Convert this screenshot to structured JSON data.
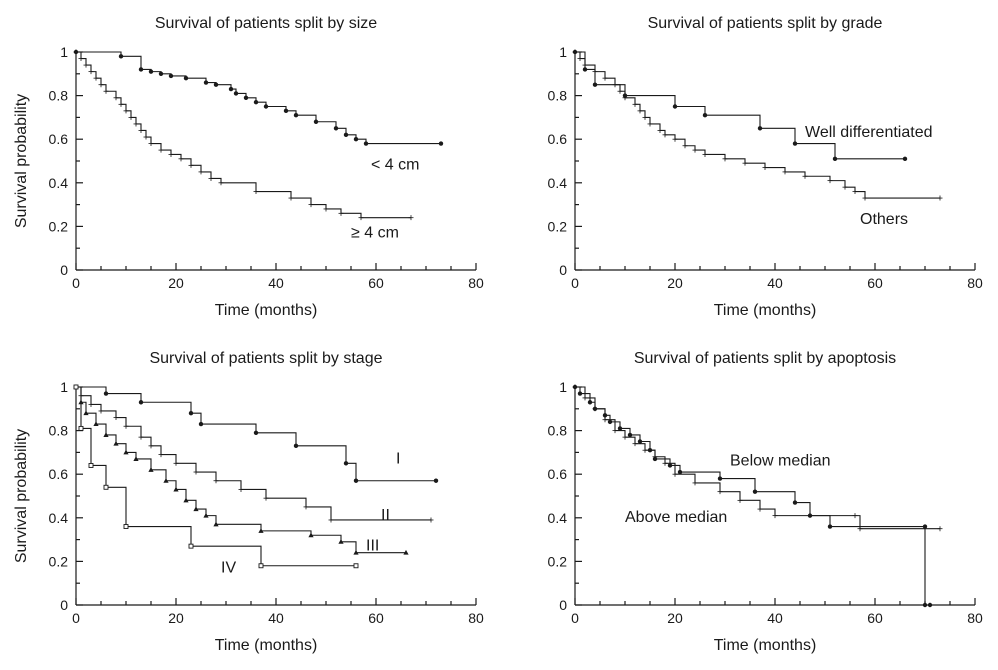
{
  "chart_data": [
    {
      "type": "line",
      "title": "Survival of patients split by size",
      "xlabel": "Time (months)",
      "ylabel": "Survival probability",
      "xlim": [
        0,
        80
      ],
      "ylim": [
        0,
        1
      ],
      "xticks": [
        "0",
        "20",
        "40",
        "60",
        "80"
      ],
      "yticks": [
        "0",
        "0.2",
        "0.4",
        "0.6",
        "0.8",
        "1"
      ],
      "series": [
        {
          "name": "< 4 cm",
          "marker": "dot",
          "points": [
            [
              0,
              1
            ],
            [
              9,
              0.98
            ],
            [
              13,
              0.92
            ],
            [
              15,
              0.91
            ],
            [
              17,
              0.9
            ],
            [
              19,
              0.89
            ],
            [
              22,
              0.88
            ],
            [
              26,
              0.86
            ],
            [
              28,
              0.85
            ],
            [
              31,
              0.83
            ],
            [
              32,
              0.81
            ],
            [
              34,
              0.79
            ],
            [
              36,
              0.77
            ],
            [
              38,
              0.75
            ],
            [
              42,
              0.73
            ],
            [
              44,
              0.71
            ],
            [
              48,
              0.68
            ],
            [
              52,
              0.65
            ],
            [
              54,
              0.62
            ],
            [
              56,
              0.6
            ],
            [
              58,
              0.58
            ],
            [
              73,
              0.58
            ]
          ],
          "label_at": [
            59,
            0.46
          ]
        },
        {
          "name": "≥ 4 cm",
          "marker": "plus",
          "points": [
            [
              0,
              1
            ],
            [
              1,
              0.97
            ],
            [
              2,
              0.94
            ],
            [
              3,
              0.91
            ],
            [
              4,
              0.88
            ],
            [
              5,
              0.85
            ],
            [
              6,
              0.82
            ],
            [
              8,
              0.79
            ],
            [
              9,
              0.76
            ],
            [
              10,
              0.73
            ],
            [
              11,
              0.7
            ],
            [
              12,
              0.67
            ],
            [
              13,
              0.64
            ],
            [
              14,
              0.61
            ],
            [
              15,
              0.58
            ],
            [
              17,
              0.55
            ],
            [
              19,
              0.53
            ],
            [
              21,
              0.51
            ],
            [
              23,
              0.48
            ],
            [
              25,
              0.45
            ],
            [
              27,
              0.42
            ],
            [
              29,
              0.4
            ],
            [
              36,
              0.36
            ],
            [
              43,
              0.33
            ],
            [
              47,
              0.3
            ],
            [
              50,
              0.28
            ],
            [
              53,
              0.26
            ],
            [
              57,
              0.24
            ],
            [
              67,
              0.24
            ]
          ],
          "label_at": [
            55,
            0.15
          ]
        }
      ]
    },
    {
      "type": "line",
      "title": "Survival of patients split by grade",
      "xlabel": "Time (months)",
      "ylabel": "",
      "xlim": [
        0,
        80
      ],
      "ylim": [
        0,
        1
      ],
      "xticks": [
        "0",
        "20",
        "40",
        "60",
        "80"
      ],
      "yticks": [
        "0",
        "0.2",
        "0.4",
        "0.6",
        "0.8",
        "1"
      ],
      "series": [
        {
          "name": "Well differentiated",
          "marker": "dot",
          "points": [
            [
              0,
              1
            ],
            [
              2,
              0.92
            ],
            [
              4,
              0.85
            ],
            [
              10,
              0.8
            ],
            [
              20,
              0.75
            ],
            [
              26,
              0.71
            ],
            [
              37,
              0.65
            ],
            [
              44,
              0.58
            ],
            [
              52,
              0.51
            ],
            [
              66,
              0.51
            ]
          ],
          "label_at": [
            46,
            0.61
          ]
        },
        {
          "name": "Others",
          "marker": "plus",
          "points": [
            [
              0,
              1
            ],
            [
              1,
              0.97
            ],
            [
              2,
              0.94
            ],
            [
              4,
              0.91
            ],
            [
              6,
              0.88
            ],
            [
              8,
              0.85
            ],
            [
              9,
              0.82
            ],
            [
              10,
              0.79
            ],
            [
              12,
              0.76
            ],
            [
              13,
              0.73
            ],
            [
              14,
              0.7
            ],
            [
              15,
              0.67
            ],
            [
              17,
              0.64
            ],
            [
              18,
              0.62
            ],
            [
              20,
              0.6
            ],
            [
              22,
              0.57
            ],
            [
              24,
              0.55
            ],
            [
              26,
              0.53
            ],
            [
              30,
              0.51
            ],
            [
              34,
              0.49
            ],
            [
              38,
              0.47
            ],
            [
              42,
              0.45
            ],
            [
              46,
              0.43
            ],
            [
              51,
              0.41
            ],
            [
              54,
              0.38
            ],
            [
              56,
              0.36
            ],
            [
              58,
              0.33
            ],
            [
              73,
              0.33
            ]
          ],
          "label_at": [
            57,
            0.21
          ]
        }
      ]
    },
    {
      "type": "line",
      "title": "Survival of patients split by stage",
      "xlabel": "Time (months)",
      "ylabel": "Survival probability",
      "xlim": [
        0,
        80
      ],
      "ylim": [
        0,
        1
      ],
      "xticks": [
        "0",
        "20",
        "40",
        "60",
        "80"
      ],
      "yticks": [
        "0",
        "0.2",
        "0.4",
        "0.6",
        "0.8",
        "1"
      ],
      "series": [
        {
          "name": "I",
          "marker": "dot",
          "points": [
            [
              0,
              1
            ],
            [
              6,
              0.97
            ],
            [
              13,
              0.93
            ],
            [
              23,
              0.88
            ],
            [
              25,
              0.83
            ],
            [
              36,
              0.79
            ],
            [
              44,
              0.73
            ],
            [
              54,
              0.65
            ],
            [
              56,
              0.57
            ],
            [
              72,
              0.57
            ]
          ],
          "label_at": [
            64,
            0.65
          ]
        },
        {
          "name": "II",
          "marker": "plus",
          "points": [
            [
              0,
              1
            ],
            [
              1,
              0.96
            ],
            [
              3,
              0.92
            ],
            [
              5,
              0.89
            ],
            [
              8,
              0.86
            ],
            [
              10,
              0.82
            ],
            [
              13,
              0.77
            ],
            [
              15,
              0.73
            ],
            [
              17,
              0.69
            ],
            [
              20,
              0.65
            ],
            [
              24,
              0.61
            ],
            [
              28,
              0.57
            ],
            [
              33,
              0.53
            ],
            [
              38,
              0.49
            ],
            [
              46,
              0.45
            ],
            [
              51,
              0.39
            ],
            [
              71,
              0.39
            ]
          ],
          "label_at": [
            61,
            0.39
          ]
        },
        {
          "name": "III",
          "marker": "tri",
          "points": [
            [
              0,
              1
            ],
            [
              1,
              0.93
            ],
            [
              2,
              0.88
            ],
            [
              4,
              0.83
            ],
            [
              6,
              0.78
            ],
            [
              8,
              0.74
            ],
            [
              10,
              0.7
            ],
            [
              12,
              0.67
            ],
            [
              15,
              0.62
            ],
            [
              18,
              0.57
            ],
            [
              20,
              0.53
            ],
            [
              22,
              0.48
            ],
            [
              24,
              0.44
            ],
            [
              26,
              0.41
            ],
            [
              28,
              0.37
            ],
            [
              37,
              0.34
            ],
            [
              47,
              0.32
            ],
            [
              53,
              0.29
            ],
            [
              56,
              0.24
            ],
            [
              66,
              0.24
            ]
          ],
          "label_at": [
            58,
            0.25
          ]
        },
        {
          "name": "IV",
          "marker": "square",
          "points": [
            [
              0,
              1
            ],
            [
              1,
              0.81
            ],
            [
              3,
              0.64
            ],
            [
              6,
              0.54
            ],
            [
              10,
              0.36
            ],
            [
              23,
              0.27
            ],
            [
              37,
              0.18
            ],
            [
              56,
              0.18
            ]
          ],
          "label_at": [
            29,
            0.15
          ]
        }
      ]
    },
    {
      "type": "line",
      "title": "Survival of patients split by apoptosis",
      "xlabel": "Time (months)",
      "ylabel": "",
      "xlim": [
        0,
        80
      ],
      "ylim": [
        0,
        1
      ],
      "xticks": [
        "0",
        "20",
        "40",
        "60",
        "80"
      ],
      "yticks": [
        "0",
        "0.2",
        "0.4",
        "0.6",
        "0.8",
        "1"
      ],
      "series": [
        {
          "name": "Below median",
          "marker": "dot",
          "points": [
            [
              0,
              1
            ],
            [
              1,
              0.97
            ],
            [
              3,
              0.93
            ],
            [
              4,
              0.9
            ],
            [
              6,
              0.87
            ],
            [
              7,
              0.84
            ],
            [
              9,
              0.81
            ],
            [
              11,
              0.78
            ],
            [
              13,
              0.75
            ],
            [
              15,
              0.71
            ],
            [
              16,
              0.67
            ],
            [
              19,
              0.64
            ],
            [
              21,
              0.61
            ],
            [
              29,
              0.58
            ],
            [
              36,
              0.52
            ],
            [
              44,
              0.47
            ],
            [
              47,
              0.41
            ],
            [
              51,
              0.36
            ],
            [
              70,
              0.36
            ],
            [
              70,
              0
            ],
            [
              71,
              0
            ]
          ],
          "label_at": [
            31,
            0.64
          ]
        },
        {
          "name": "Above median",
          "marker": "plus",
          "points": [
            [
              0,
              1
            ],
            [
              2,
              0.95
            ],
            [
              4,
              0.9
            ],
            [
              6,
              0.85
            ],
            [
              8,
              0.8
            ],
            [
              10,
              0.77
            ],
            [
              12,
              0.74
            ],
            [
              14,
              0.71
            ],
            [
              16,
              0.68
            ],
            [
              18,
              0.65
            ],
            [
              20,
              0.6
            ],
            [
              24,
              0.56
            ],
            [
              29,
              0.52
            ],
            [
              33,
              0.48
            ],
            [
              37,
              0.44
            ],
            [
              40,
              0.41
            ],
            [
              56,
              0.41
            ],
            [
              57,
              0.35
            ],
            [
              73,
              0.35
            ]
          ],
          "label_at": [
            10,
            0.38
          ]
        }
      ]
    }
  ]
}
